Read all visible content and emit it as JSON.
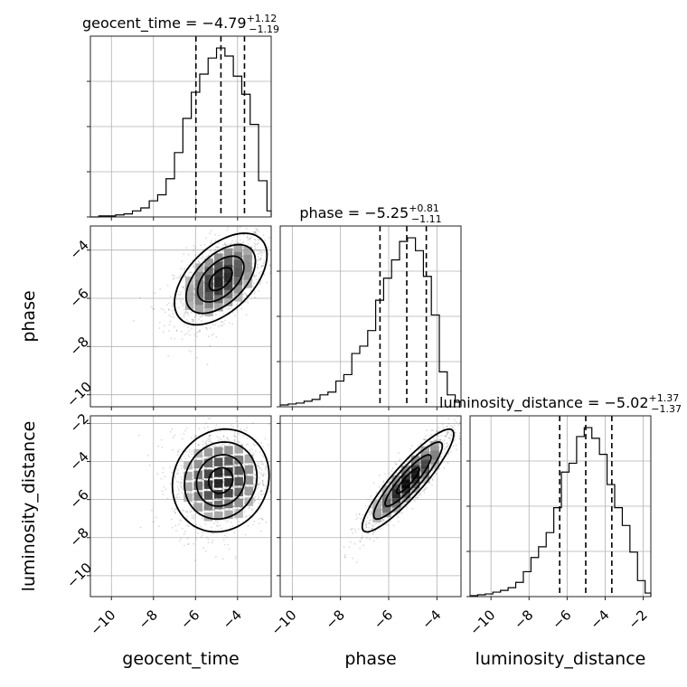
{
  "chart_data": {
    "type": "corner",
    "parameters": [
      "geocent_time",
      "phase",
      "luminosity_distance"
    ],
    "axis_labels": {
      "x": [
        "geocent_time",
        "phase",
        "luminosity_distance"
      ],
      "y": [
        "phase",
        "luminosity_distance"
      ]
    },
    "titles": [
      {
        "name": "geocent_time",
        "median": "−4.79",
        "plus": "+1.12",
        "minus": "−1.19"
      },
      {
        "name": "phase",
        "median": "−5.25",
        "plus": "+0.81",
        "minus": "−1.11"
      },
      {
        "name": "luminosity_distance",
        "median": "−5.02",
        "plus": "+1.37",
        "minus": "−1.37"
      }
    ],
    "ranges": {
      "geocent_time": [
        -11,
        -2.4
      ],
      "phase": [
        -10.5,
        -3.0
      ],
      "luminosity_distance": [
        -11.1,
        -1.6
      ]
    },
    "ticks": {
      "geocent_time": [
        -10,
        -8,
        -6,
        -4
      ],
      "phase": [
        -10,
        -8,
        -6,
        -4
      ],
      "luminosity_distance": [
        -10,
        -8,
        -6,
        -4,
        -2
      ]
    },
    "tick_labels": {
      "geocent_time": [
        "−10",
        "−8",
        "−6",
        "−4"
      ],
      "phase": [
        "−10",
        "−8",
        "−6",
        "−4"
      ],
      "luminosity_distance": [
        "−10",
        "−8",
        "−6",
        "−4",
        "−2"
      ]
    },
    "quantiles": {
      "geocent_time": [
        -5.98,
        -4.79,
        -3.67
      ],
      "phase": [
        -6.36,
        -5.25,
        -4.44
      ],
      "luminosity_distance": [
        -6.39,
        -5.02,
        -3.65
      ]
    },
    "histograms": {
      "geocent_time": {
        "edges": [
          -11.0,
          -10.6,
          -10.2,
          -9.8,
          -9.4,
          -9.0,
          -8.6,
          -8.2,
          -7.8,
          -7.4,
          -7.0,
          -6.6,
          -6.2,
          -5.8,
          -5.4,
          -5.0,
          -4.6,
          -4.2,
          -3.8,
          -3.4,
          -3.0,
          -2.6,
          -2.4
        ],
        "counts": [
          0,
          1,
          1,
          2,
          3,
          6,
          9,
          16,
          22,
          38,
          64,
          98,
          124,
          142,
          158,
          168,
          160,
          140,
          122,
          92,
          36,
          6
        ]
      },
      "phase": {
        "edges": [
          -10.5,
          -10.17,
          -9.84,
          -9.51,
          -9.18,
          -8.85,
          -8.52,
          -8.19,
          -7.86,
          -7.53,
          -7.2,
          -6.87,
          -6.54,
          -6.21,
          -5.88,
          -5.55,
          -5.22,
          -4.89,
          -4.56,
          -4.23,
          -3.9,
          -3.57,
          -3.24,
          -3.0
        ],
        "counts": [
          2,
          3,
          4,
          6,
          8,
          13,
          16,
          28,
          35,
          58,
          66,
          83,
          116,
          140,
          160,
          180,
          184,
          170,
          142,
          100,
          38,
          13,
          5
        ]
      },
      "luminosity_distance": {
        "edges": [
          -11.1,
          -10.7,
          -10.3,
          -9.9,
          -9.5,
          -9.1,
          -8.7,
          -8.3,
          -7.9,
          -7.5,
          -7.1,
          -6.7,
          -6.3,
          -5.9,
          -5.5,
          -5.1,
          -4.7,
          -4.3,
          -3.9,
          -3.5,
          -3.1,
          -2.7,
          -2.3,
          -1.9,
          -1.6
        ],
        "counts": [
          1,
          2,
          3,
          5,
          7,
          10,
          16,
          28,
          44,
          56,
          72,
          100,
          140,
          150,
          180,
          190,
          178,
          160,
          126,
          100,
          80,
          50,
          18,
          4
        ]
      }
    },
    "pairs": [
      {
        "x": "geocent_time",
        "y": "phase",
        "center": [
          -4.8,
          -5.2
        ],
        "sd": [
          1.1,
          0.95
        ],
        "rho": 0.52
      },
      {
        "x": "geocent_time",
        "y": "luminosity_distance",
        "center": [
          -4.8,
          -5.0
        ],
        "sd": [
          1.15,
          1.35
        ],
        "rho": 0.1
      },
      {
        "x": "phase",
        "y": "luminosity_distance",
        "center": [
          -5.2,
          -5.0
        ],
        "sd": [
          0.95,
          1.35
        ],
        "rho": 0.9
      }
    ],
    "grid": true
  }
}
